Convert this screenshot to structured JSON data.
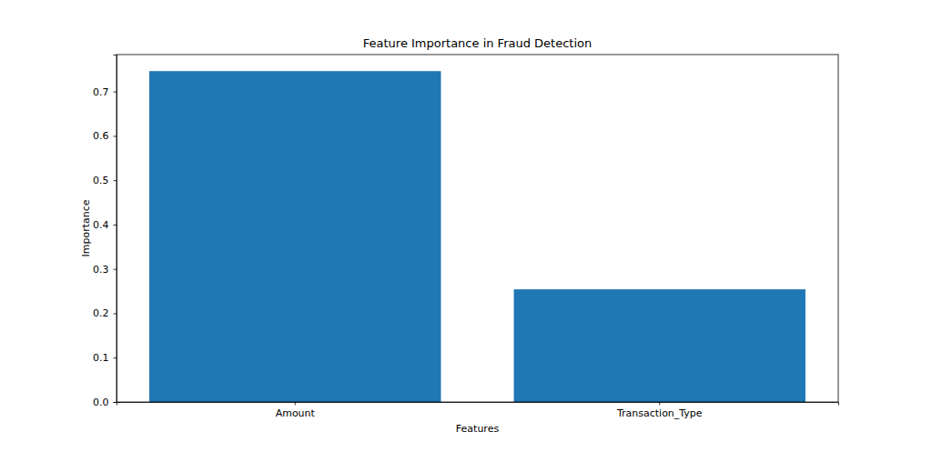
{
  "chart_data": {
    "type": "bar",
    "title": "Feature Importance in Fraud Detection",
    "x_label": "Features",
    "y_label": "Importance",
    "categories": [
      "Amount",
      "Transaction_Type"
    ],
    "values": [
      0.746,
      0.254
    ],
    "color": "#1f77b4",
    "ylim": [
      0,
      0.7833
    ],
    "yticks": [
      {
        "value": 0,
        "label": "0.0"
      },
      {
        "value": 0.1,
        "label": "0.1"
      },
      {
        "value": 0.2,
        "label": "0.2"
      },
      {
        "value": 0.3,
        "label": "0.3"
      },
      {
        "value": 0.4,
        "label": "0.4"
      },
      {
        "value": 0.5,
        "label": "0.5"
      },
      {
        "value": 0.6,
        "label": "0.6"
      },
      {
        "value": 0.7,
        "label": "0.7"
      }
    ],
    "grid": false
  }
}
